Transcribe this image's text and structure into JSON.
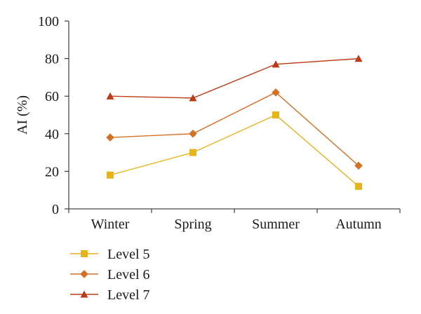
{
  "chart_data": {
    "type": "line",
    "title": "",
    "xlabel": "",
    "ylabel": "AI (%)",
    "ylim": [
      0,
      100
    ],
    "yticks": [
      0,
      20,
      40,
      60,
      80,
      100
    ],
    "categories": [
      "Winter",
      "Spring",
      "Summer",
      "Autumn"
    ],
    "grid": false,
    "legend_position": "bottom-left",
    "series": [
      {
        "name": "Level 5",
        "values": [
          18,
          30,
          50,
          12
        ],
        "color": "#e8b21a",
        "marker": "square"
      },
      {
        "name": "Level 6",
        "values": [
          38,
          40,
          62,
          23
        ],
        "color": "#d46f26",
        "marker": "diamond"
      },
      {
        "name": "Level 7",
        "values": [
          60,
          59,
          77,
          80
        ],
        "color": "#be3a16",
        "marker": "triangle"
      }
    ]
  }
}
